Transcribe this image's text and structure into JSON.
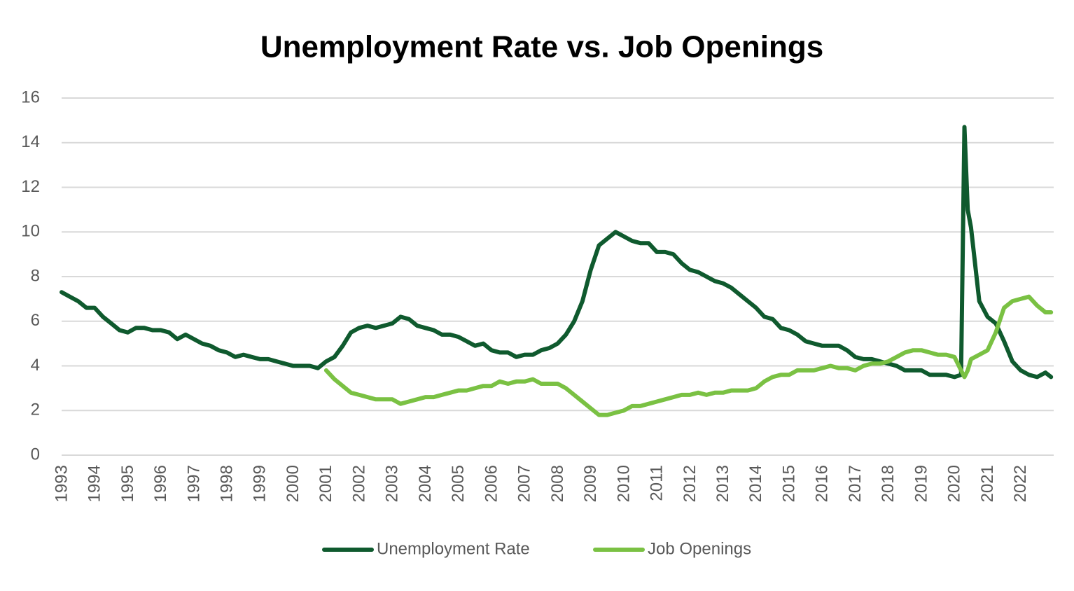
{
  "chart_data": {
    "type": "line",
    "title": "Unemployment Rate vs. Job Openings",
    "x": [
      1993,
      1993.25,
      1993.5,
      1993.75,
      1994,
      1994.25,
      1994.5,
      1994.75,
      1995,
      1995.25,
      1995.5,
      1995.75,
      1996,
      1996.25,
      1996.5,
      1996.75,
      1997,
      1997.25,
      1997.5,
      1997.75,
      1998,
      1998.25,
      1998.5,
      1998.75,
      1999,
      1999.25,
      1999.5,
      1999.75,
      2000,
      2000.25,
      2000.5,
      2000.75,
      2001,
      2001.25,
      2001.5,
      2001.75,
      2002,
      2002.25,
      2002.5,
      2002.75,
      2003,
      2003.25,
      2003.5,
      2003.75,
      2004,
      2004.25,
      2004.5,
      2004.75,
      2005,
      2005.25,
      2005.5,
      2005.75,
      2006,
      2006.25,
      2006.5,
      2006.75,
      2007,
      2007.25,
      2007.5,
      2007.75,
      2008,
      2008.25,
      2008.5,
      2008.75,
      2009,
      2009.25,
      2009.5,
      2009.75,
      2010,
      2010.25,
      2010.5,
      2010.75,
      2011,
      2011.25,
      2011.5,
      2011.75,
      2012,
      2012.25,
      2012.5,
      2012.75,
      2013,
      2013.25,
      2013.5,
      2013.75,
      2014,
      2014.25,
      2014.5,
      2014.75,
      2015,
      2015.25,
      2015.5,
      2015.75,
      2016,
      2016.25,
      2016.5,
      2016.75,
      2017,
      2017.25,
      2017.5,
      2017.75,
      2018,
      2018.25,
      2018.5,
      2018.75,
      2019,
      2019.25,
      2019.5,
      2019.75,
      2020,
      2020.2,
      2020.3,
      2020.4,
      2020.5,
      2020.75,
      2021,
      2021.25,
      2021.5,
      2021.75,
      2022,
      2022.25,
      2022.5,
      2022.75,
      2022.92
    ],
    "series": [
      {
        "name": "Unemployment Rate",
        "color": "#0f5a2e",
        "values": [
          7.3,
          7.1,
          6.9,
          6.6,
          6.6,
          6.2,
          5.9,
          5.6,
          5.5,
          5.7,
          5.7,
          5.6,
          5.6,
          5.5,
          5.2,
          5.4,
          5.2,
          5.0,
          4.9,
          4.7,
          4.6,
          4.4,
          4.5,
          4.4,
          4.3,
          4.3,
          4.2,
          4.1,
          4.0,
          4.0,
          4.0,
          3.9,
          4.2,
          4.4,
          4.9,
          5.5,
          5.7,
          5.8,
          5.7,
          5.8,
          5.9,
          6.2,
          6.1,
          5.8,
          5.7,
          5.6,
          5.4,
          5.4,
          5.3,
          5.1,
          4.9,
          5.0,
          4.7,
          4.6,
          4.6,
          4.4,
          4.5,
          4.5,
          4.7,
          4.8,
          5.0,
          5.4,
          6.0,
          6.9,
          8.3,
          9.4,
          9.7,
          10.0,
          9.8,
          9.6,
          9.5,
          9.5,
          9.1,
          9.1,
          9.0,
          8.6,
          8.3,
          8.2,
          8.0,
          7.8,
          7.7,
          7.5,
          7.2,
          6.9,
          6.6,
          6.2,
          6.1,
          5.7,
          5.6,
          5.4,
          5.1,
          5.0,
          4.9,
          4.9,
          4.9,
          4.7,
          4.4,
          4.3,
          4.3,
          4.2,
          4.1,
          4.0,
          3.8,
          3.8,
          3.8,
          3.6,
          3.6,
          3.6,
          3.5,
          3.6,
          14.7,
          11.0,
          10.2,
          6.9,
          6.2,
          5.9,
          5.1,
          4.2,
          3.8,
          3.6,
          3.5,
          3.7,
          3.5
        ]
      },
      {
        "name": "Job Openings",
        "color": "#7ac143",
        "values": [
          null,
          null,
          null,
          null,
          null,
          null,
          null,
          null,
          null,
          null,
          null,
          null,
          null,
          null,
          null,
          null,
          null,
          null,
          null,
          null,
          null,
          null,
          null,
          null,
          null,
          null,
          null,
          null,
          null,
          null,
          null,
          null,
          3.8,
          3.4,
          3.1,
          2.8,
          2.7,
          2.6,
          2.5,
          2.5,
          2.5,
          2.3,
          2.4,
          2.5,
          2.6,
          2.6,
          2.7,
          2.8,
          2.9,
          2.9,
          3.0,
          3.1,
          3.1,
          3.3,
          3.2,
          3.3,
          3.3,
          3.4,
          3.2,
          3.2,
          3.2,
          3.0,
          2.7,
          2.4,
          2.1,
          1.8,
          1.8,
          1.9,
          2.0,
          2.2,
          2.2,
          2.3,
          2.4,
          2.5,
          2.6,
          2.7,
          2.7,
          2.8,
          2.7,
          2.8,
          2.8,
          2.9,
          2.9,
          2.9,
          3.0,
          3.3,
          3.5,
          3.6,
          3.6,
          3.8,
          3.8,
          3.8,
          3.9,
          4.0,
          3.9,
          3.9,
          3.8,
          4.0,
          4.1,
          4.1,
          4.2,
          4.4,
          4.6,
          4.7,
          4.7,
          4.6,
          4.5,
          4.5,
          4.4,
          3.8,
          3.5,
          3.8,
          4.3,
          4.5,
          4.7,
          5.5,
          6.6,
          6.9,
          7.0,
          7.1,
          6.7,
          6.4,
          6.4
        ]
      }
    ],
    "xlim": [
      1993,
      2023
    ],
    "xticks": [
      1993,
      1994,
      1995,
      1996,
      1997,
      1998,
      1999,
      2000,
      2001,
      2002,
      2003,
      2004,
      2005,
      2006,
      2007,
      2008,
      2009,
      2010,
      2011,
      2012,
      2013,
      2014,
      2015,
      2016,
      2017,
      2018,
      2019,
      2020,
      2021,
      2022
    ],
    "ylim": [
      0,
      16
    ],
    "yticks": [
      0,
      2,
      4,
      6,
      8,
      10,
      12,
      14,
      16
    ],
    "grid": true,
    "legend": "bottom"
  }
}
